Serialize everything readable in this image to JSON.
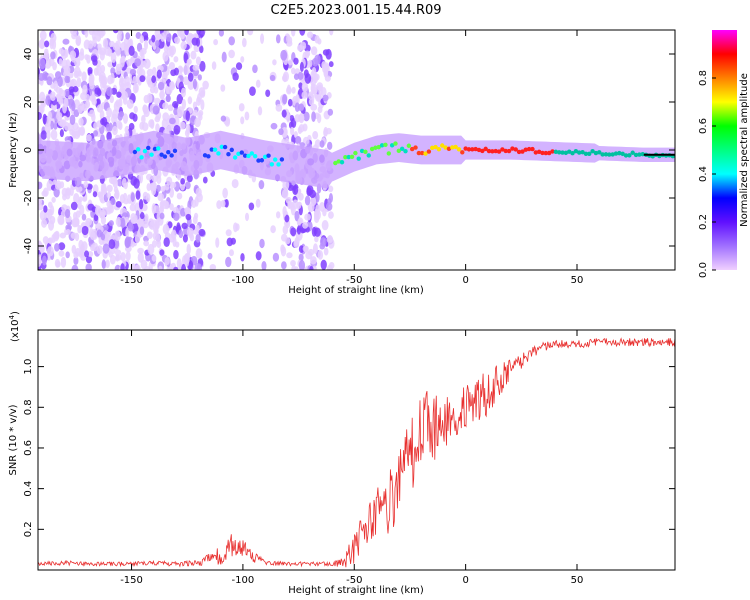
{
  "title": "C2E5.2023.001.15.44.R09",
  "chart_data": [
    {
      "type": "heatmap",
      "xlabel": "Height of straight line (km)",
      "ylabel": "Frequency (Hz)",
      "xlim": [
        -192,
        94
      ],
      "ylim": [
        -50,
        50
      ],
      "xticks": [
        -150,
        -100,
        -50,
        0,
        50
      ],
      "yticks": [
        -40,
        -20,
        0,
        20,
        40
      ],
      "grid": false,
      "trace_points": {
        "x": [
          -190,
          -170,
          -150,
          -140,
          -125,
          -110,
          -100,
          -90,
          -62,
          -50,
          -40,
          -30,
          -20,
          -10,
          0,
          20,
          50,
          80,
          94
        ],
        "y": [
          -4,
          -5,
          -2,
          0,
          -3,
          0,
          -2,
          -4,
          -8,
          -3,
          0,
          1,
          0,
          0,
          0,
          0,
          -1,
          -2,
          -2
        ]
      },
      "colorbar": {
        "label": "Normalized spectral amplitude",
        "range": [
          0,
          1
        ],
        "ticks": [
          "0.0",
          "0.2",
          "0.4",
          "0.6",
          "0.8"
        ],
        "tick_values": [
          0.0,
          0.2,
          0.4,
          0.6,
          0.8
        ],
        "colors": [
          "#f0d0ff",
          "#a070ff",
          "#6010ff",
          "#0000ff",
          "#00ffff",
          "#00ff80",
          "#00ff00",
          "#ffff00",
          "#ff8000",
          "#ff0000",
          "#ff00ff"
        ]
      }
    },
    {
      "type": "line",
      "xlabel": "Height of straight line (km)",
      "ylabel": "SNR (10 * v/v)",
      "yexponent_label": "(x10",
      "yexponent_power": "4",
      "yexponent_close": ")",
      "xlim": [
        -192,
        94
      ],
      "ylim": [
        0.0,
        1.18
      ],
      "xticks": [
        -150,
        -100,
        -50,
        0,
        50
      ],
      "yticks": [
        "0.2",
        "0.4",
        "0.6",
        "0.8",
        "1.0"
      ],
      "ytick_values": [
        0.2,
        0.4,
        0.6,
        0.8,
        1.0
      ],
      "color": "#e8302f",
      "series": [
        {
          "x": [
            -192,
            -180,
            -170,
            -160,
            -150,
            -140,
            -130,
            -120,
            -110,
            -105,
            -100,
            -95,
            -90,
            -80,
            -70,
            -60,
            -55,
            -50,
            -45,
            -40,
            -35,
            -30,
            -25,
            -20,
            -15,
            -10,
            -5,
            0,
            5,
            10,
            15,
            20,
            25,
            30,
            35,
            40,
            50,
            60,
            70,
            80,
            94
          ],
          "y": [
            0.03,
            0.035,
            0.03,
            0.03,
            0.03,
            0.035,
            0.03,
            0.035,
            0.07,
            0.12,
            0.11,
            0.06,
            0.035,
            0.03,
            0.03,
            0.03,
            0.04,
            0.1,
            0.2,
            0.28,
            0.32,
            0.4,
            0.55,
            0.7,
            0.7,
            0.72,
            0.78,
            0.8,
            0.83,
            0.86,
            0.92,
            0.98,
            1.03,
            1.07,
            1.1,
            1.11,
            1.11,
            1.12,
            1.12,
            1.12,
            1.12
          ],
          "spread": [
            0.008,
            0.012,
            0.01,
            0.01,
            0.01,
            0.012,
            0.012,
            0.015,
            0.05,
            0.06,
            0.05,
            0.03,
            0.012,
            0.01,
            0.01,
            0.01,
            0.03,
            0.08,
            0.1,
            0.12,
            0.15,
            0.18,
            0.2,
            0.2,
            0.18,
            0.15,
            0.12,
            0.12,
            0.12,
            0.12,
            0.1,
            0.06,
            0.04,
            0.03,
            0.025,
            0.02,
            0.02,
            0.02,
            0.02,
            0.02,
            0.02
          ]
        }
      ]
    }
  ]
}
